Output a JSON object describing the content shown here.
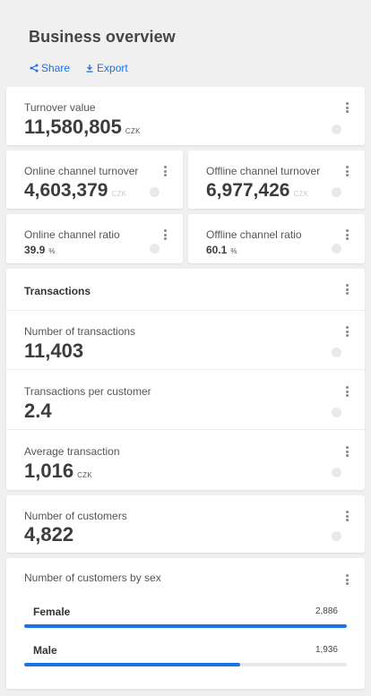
{
  "header": {
    "title": "Business overview",
    "share_label": "Share",
    "export_label": "Export"
  },
  "turnover": {
    "label": "Turnover value",
    "value": "11,580,805",
    "unit": "CZK"
  },
  "online_turnover": {
    "label": "Online channel turnover",
    "value": "4,603,379",
    "unit": "CZK"
  },
  "offline_turnover": {
    "label": "Offline channel turnover",
    "value": "6,977,426",
    "unit": "CZK"
  },
  "online_ratio": {
    "label": "Online channel ratio",
    "value": "39.9",
    "unit": "%"
  },
  "offline_ratio": {
    "label": "Offline channel ratio",
    "value": "60.1",
    "unit": "%"
  },
  "transactions": {
    "title": "Transactions",
    "count": {
      "label": "Number of transactions",
      "value": "11,403"
    },
    "per_customer": {
      "label": "Transactions per customer",
      "value": "2.4"
    },
    "average": {
      "label": "Average transaction",
      "value": "1,016",
      "unit": "CZK"
    }
  },
  "customers": {
    "label": "Number of customers",
    "value": "4,822"
  },
  "by_sex": {
    "title": "Number of customers by sex",
    "items": [
      {
        "label": "Female",
        "count": "2,886",
        "fraction": 1.0
      },
      {
        "label": "Male",
        "count": "1,936",
        "fraction": 0.67
      }
    ]
  },
  "colors": {
    "accent": "#1a73e8",
    "background": "#f0f0f0"
  },
  "icons": {
    "share": "share-icon",
    "export": "download-icon",
    "menu": "kebab-menu-icon"
  }
}
